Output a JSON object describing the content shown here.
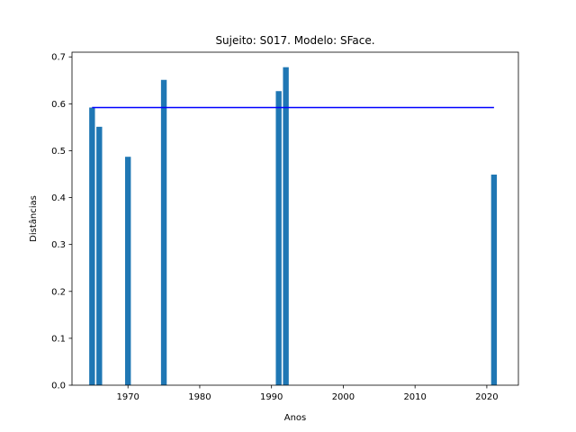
{
  "chart_data": {
    "type": "bar",
    "title": "Sujeito: S017. Modelo: SFace.",
    "xlabel": "Anos",
    "ylabel": "Distâncias",
    "xlim": [
      1962.2,
      2024.4
    ],
    "ylim": [
      0,
      0.71
    ],
    "xticks": [
      1970,
      1980,
      1990,
      2000,
      2010,
      2020
    ],
    "yticks": [
      0.0,
      0.1,
      0.2,
      0.3,
      0.4,
      0.5,
      0.6,
      0.7
    ],
    "grid": false,
    "bar_color": "#1f77b4",
    "bars": [
      {
        "x": 1965,
        "value": 0.592
      },
      {
        "x": 1966,
        "value": 0.551
      },
      {
        "x": 1970,
        "value": 0.487
      },
      {
        "x": 1975,
        "value": 0.651
      },
      {
        "x": 1991,
        "value": 0.627
      },
      {
        "x": 1992,
        "value": 0.678
      },
      {
        "x": 2021,
        "value": 0.449
      }
    ],
    "threshold_line": {
      "color": "#0000ff",
      "value": 0.592,
      "x_start": 1965,
      "x_end": 2021
    }
  }
}
